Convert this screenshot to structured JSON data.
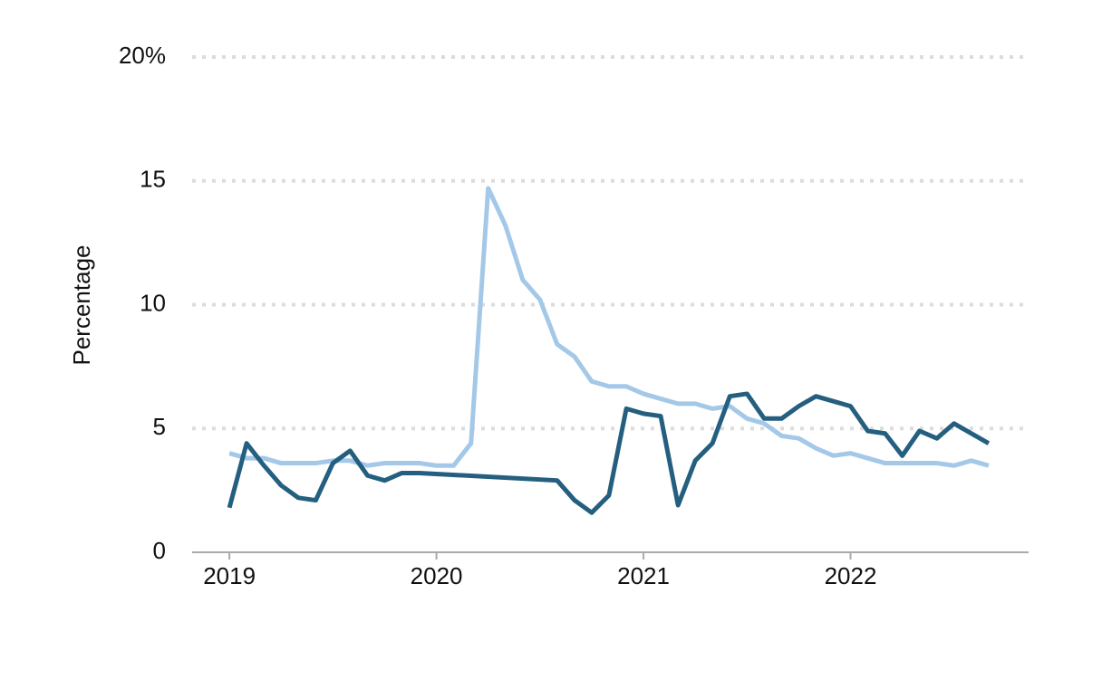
{
  "chart_data": {
    "type": "line",
    "y_label": "Percentage",
    "xlim": [
      2018.82,
      2022.86
    ],
    "xticks": [
      2019,
      2020,
      2021,
      2022
    ],
    "ylim": [
      0,
      20
    ],
    "yticks": [
      0,
      5,
      10,
      15,
      {
        "value": 20,
        "label": "20%"
      }
    ],
    "grid": true,
    "series": [
      {
        "color": "#a3c8e8",
        "x": [
          2019,
          2019.083,
          2019.167,
          2019.25,
          2019.333,
          2019.417,
          2019.5,
          2019.583,
          2019.667,
          2019.75,
          2019.833,
          2019.917,
          2020,
          2020.083,
          2020.167,
          2020.25,
          2020.333,
          2020.417,
          2020.5,
          2020.583,
          2020.667,
          2020.75,
          2020.833,
          2020.917,
          2021,
          2021.083,
          2021.167,
          2021.25,
          2021.333,
          2021.417,
          2021.5,
          2021.583,
          2021.667,
          2021.75,
          2021.833,
          2021.917,
          2022,
          2022.083,
          2022.167,
          2022.25,
          2022.333,
          2022.417,
          2022.5,
          2022.583,
          2022.667
        ],
        "values": [
          4.0,
          3.8,
          3.8,
          3.6,
          3.6,
          3.6,
          3.7,
          3.7,
          3.5,
          3.6,
          3.6,
          3.6,
          3.5,
          3.5,
          4.4,
          14.7,
          13.2,
          11.0,
          10.2,
          8.4,
          7.9,
          6.9,
          6.7,
          6.7,
          6.4,
          6.2,
          6.0,
          6.0,
          5.8,
          5.9,
          5.4,
          5.2,
          4.7,
          4.6,
          4.2,
          3.9,
          4.0,
          3.8,
          3.6,
          3.6,
          3.6,
          3.6,
          3.5,
          3.7,
          3.5
        ]
      },
      {
        "color": "#245f7f",
        "x": [
          2019,
          2019.083,
          2019.167,
          2019.25,
          2019.333,
          2019.417,
          2019.5,
          2019.583,
          2019.667,
          2019.75,
          2019.833,
          2019.917,
          2020.583,
          2020.667,
          2020.75,
          2020.833,
          2020.917,
          2021,
          2021.083,
          2021.167,
          2021.25,
          2021.333,
          2021.417,
          2021.5,
          2021.583,
          2021.667,
          2021.75,
          2021.833,
          2021.917,
          2022,
          2022.083,
          2022.167,
          2022.25,
          2022.333,
          2022.417,
          2022.5,
          2022.583,
          2022.667
        ],
        "values": [
          1.8,
          4.4,
          3.5,
          2.7,
          2.2,
          2.1,
          3.6,
          4.1,
          3.1,
          2.9,
          3.2,
          3.2,
          2.9,
          2.1,
          1.6,
          2.3,
          5.8,
          5.6,
          5.5,
          1.9,
          3.7,
          4.4,
          6.3,
          6.4,
          5.4,
          5.4,
          5.9,
          6.3,
          6.1,
          5.9,
          4.9,
          4.8,
          3.9,
          4.9,
          4.6,
          5.2,
          4.8,
          4.4
        ]
      }
    ]
  }
}
